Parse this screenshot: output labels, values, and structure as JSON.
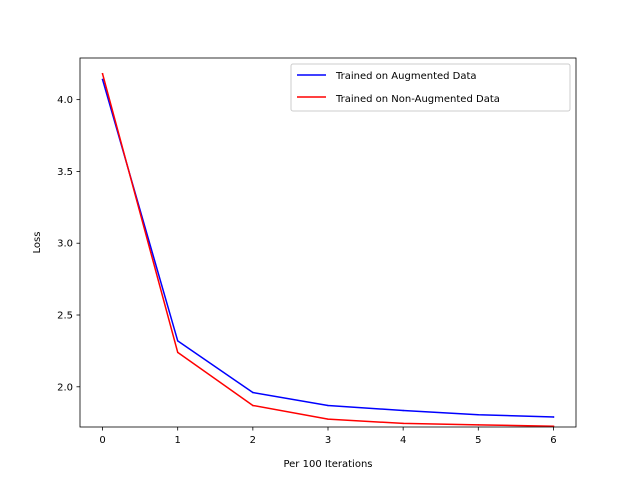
{
  "chart_data": {
    "type": "line",
    "title": "",
    "xlabel": "Per 100 Iterations",
    "ylabel": "Loss",
    "x": [
      0,
      1,
      2,
      3,
      4,
      5,
      6
    ],
    "xlim": [
      -0.3,
      6.3
    ],
    "ylim": [
      1.72,
      4.29
    ],
    "xticks": [
      0,
      1,
      2,
      3,
      4,
      5,
      6
    ],
    "yticks": [
      2.0,
      2.5,
      3.0,
      3.5,
      4.0
    ],
    "xtick_labels": [
      "0",
      "1",
      "2",
      "3",
      "4",
      "5",
      "6"
    ],
    "ytick_labels": [
      "2.0",
      "2.5",
      "3.0",
      "3.5",
      "4.0"
    ],
    "grid": false,
    "legend_position": "top-right",
    "series": [
      {
        "name": "Trained on Augmented Data",
        "color": "#0000ff",
        "values": [
          4.14,
          2.32,
          1.96,
          1.87,
          1.835,
          1.805,
          1.79
        ]
      },
      {
        "name": "Trained on Non-Augmented Data",
        "color": "#ff0000",
        "values": [
          4.18,
          2.24,
          1.87,
          1.775,
          1.745,
          1.735,
          1.725
        ]
      }
    ]
  }
}
